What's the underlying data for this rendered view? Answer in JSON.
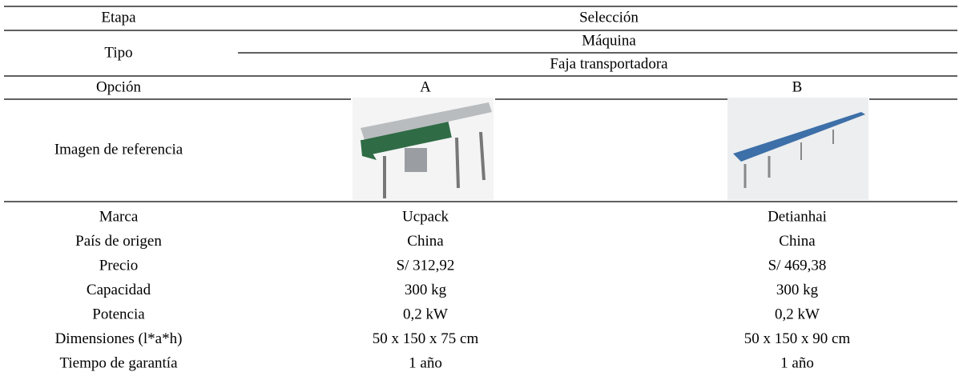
{
  "table": {
    "stage_label": "Etapa",
    "stage": "Selección",
    "type_label": "Tipo",
    "type": "Máquina",
    "subtype": "Faja transportadora",
    "option_label": "Opción",
    "options": [
      "A",
      "B"
    ],
    "image_label": "Imagen de referencia",
    "rows": [
      [
        "Marca",
        "Ucpack",
        "Detianhai"
      ],
      [
        "País de origen",
        "China",
        "China"
      ],
      [
        "Precio",
        "S/ 312,92",
        "S/ 469,38"
      ],
      [
        "Capacidad",
        "300 kg",
        "300 kg"
      ],
      [
        "Potencia",
        "0,2 kW",
        "0,2 kW"
      ],
      [
        "Dimensiones (l*a*h)",
        "50 x 150 x 75 cm",
        "50 x 150 x 90 cm"
      ],
      [
        "Tiempo de garantía",
        "1 año",
        "1 año"
      ]
    ]
  }
}
